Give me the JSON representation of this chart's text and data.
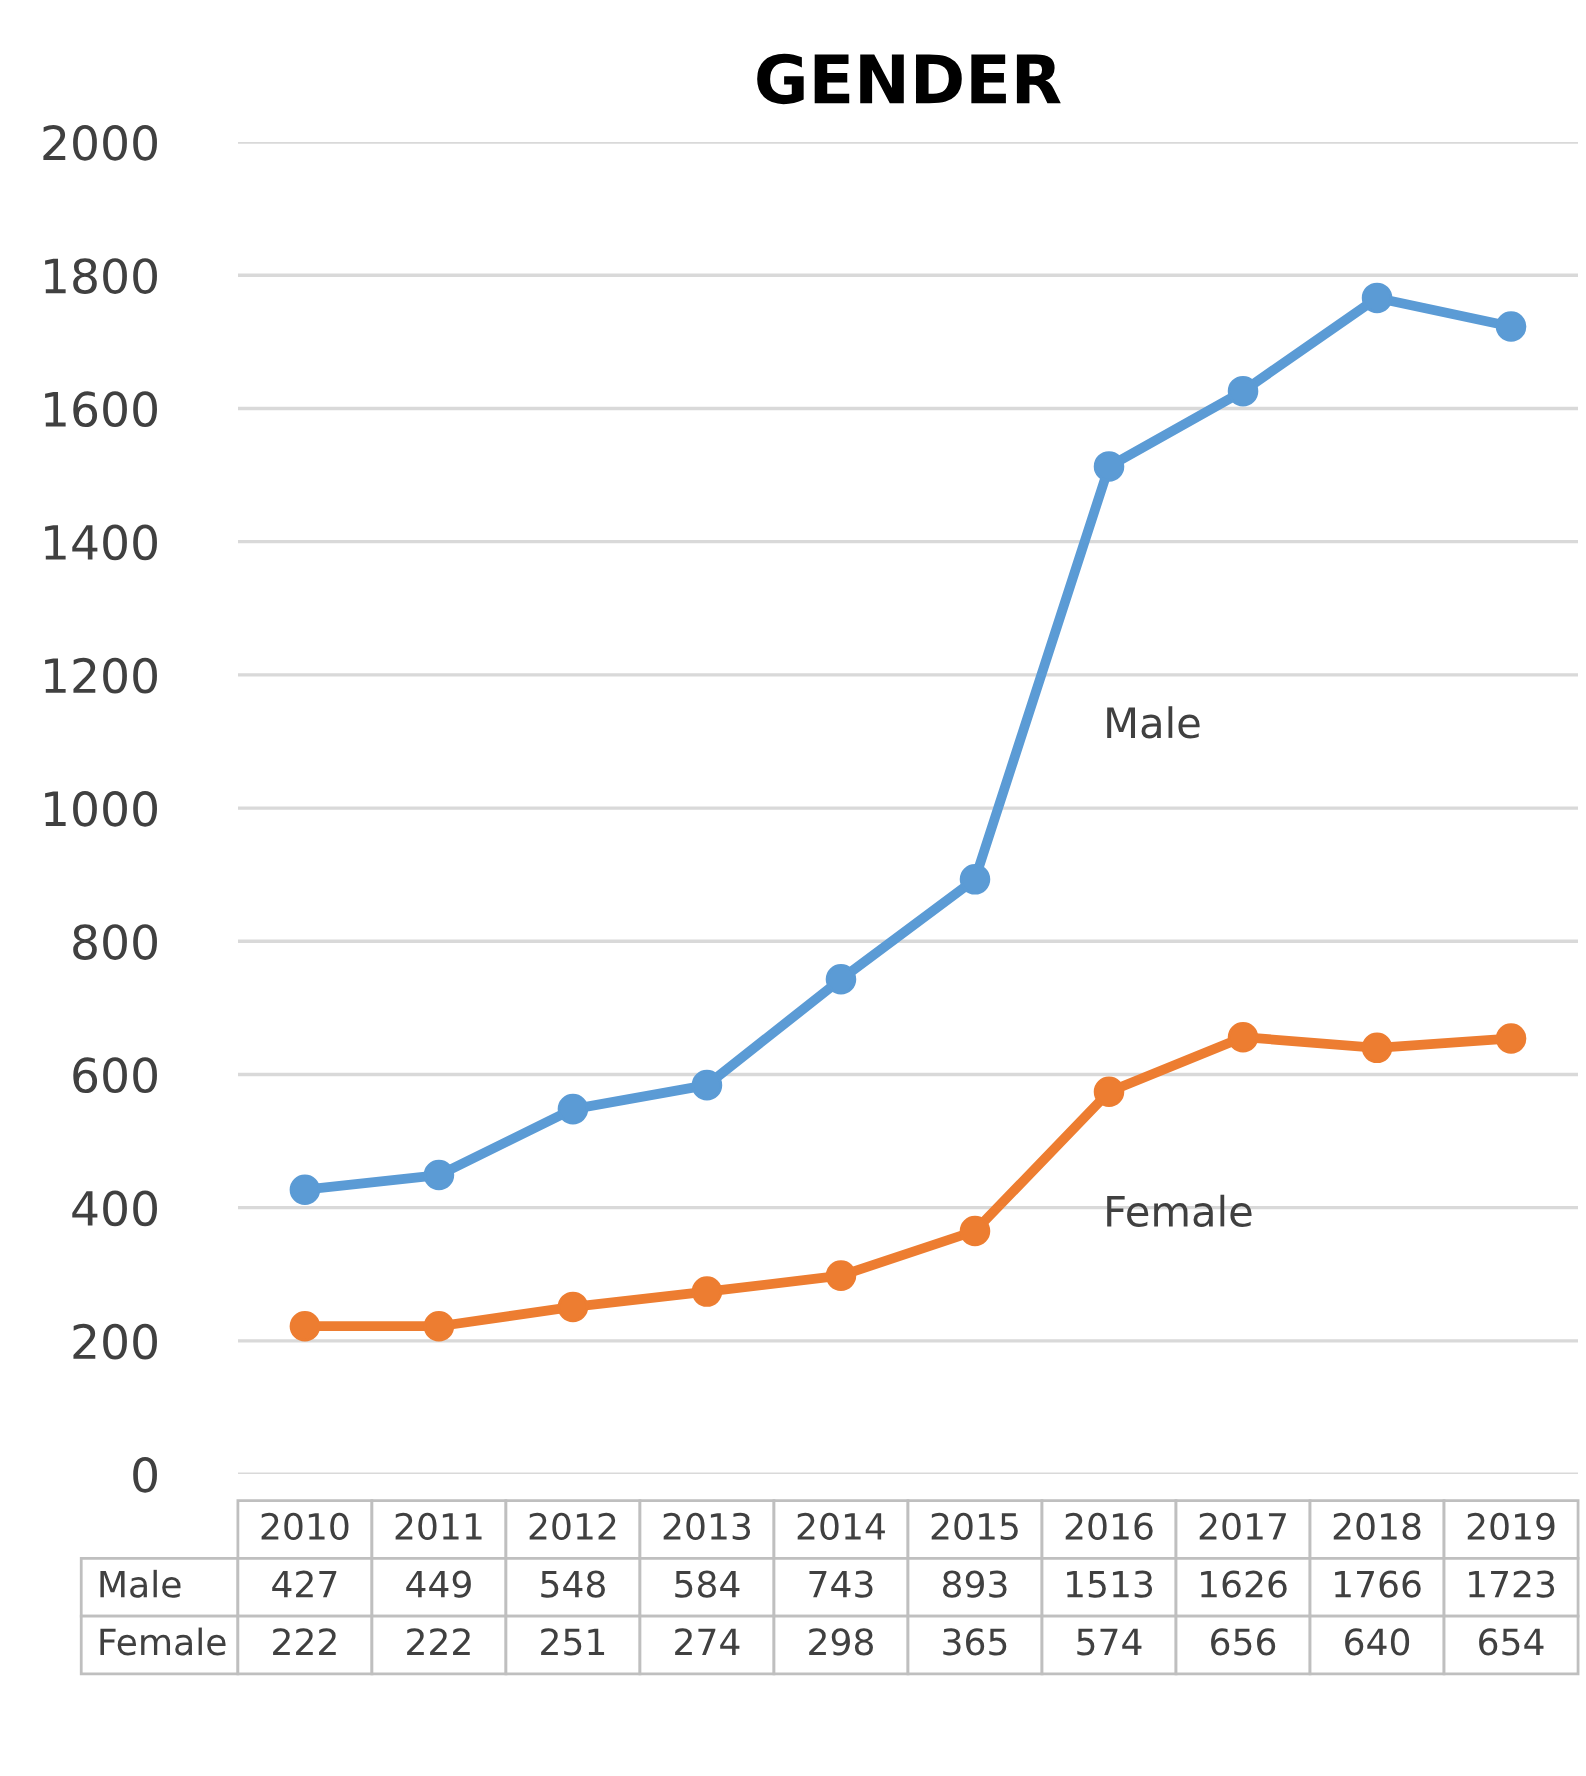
{
  "chart_data": {
    "type": "line",
    "title": "GENDER",
    "categories": [
      "2010",
      "2011",
      "2012",
      "2013",
      "2014",
      "2015",
      "2016",
      "2017",
      "2018",
      "2019"
    ],
    "series": [
      {
        "name": "Male",
        "color": "#5b9bd5",
        "values": [
          427,
          449,
          548,
          584,
          743,
          893,
          1513,
          1626,
          1766,
          1723
        ]
      },
      {
        "name": "Female",
        "color": "#ed7d31",
        "values": [
          222,
          222,
          251,
          274,
          298,
          365,
          574,
          656,
          640,
          654
        ]
      }
    ],
    "ylim": [
      0,
      2000
    ],
    "yticks": [
      0,
      200,
      400,
      600,
      800,
      1000,
      1200,
      1400,
      1600,
      1800,
      2000
    ],
    "grid": "y",
    "marker": "circle",
    "line_style": "solid",
    "data_labels": true,
    "legend": false
  }
}
